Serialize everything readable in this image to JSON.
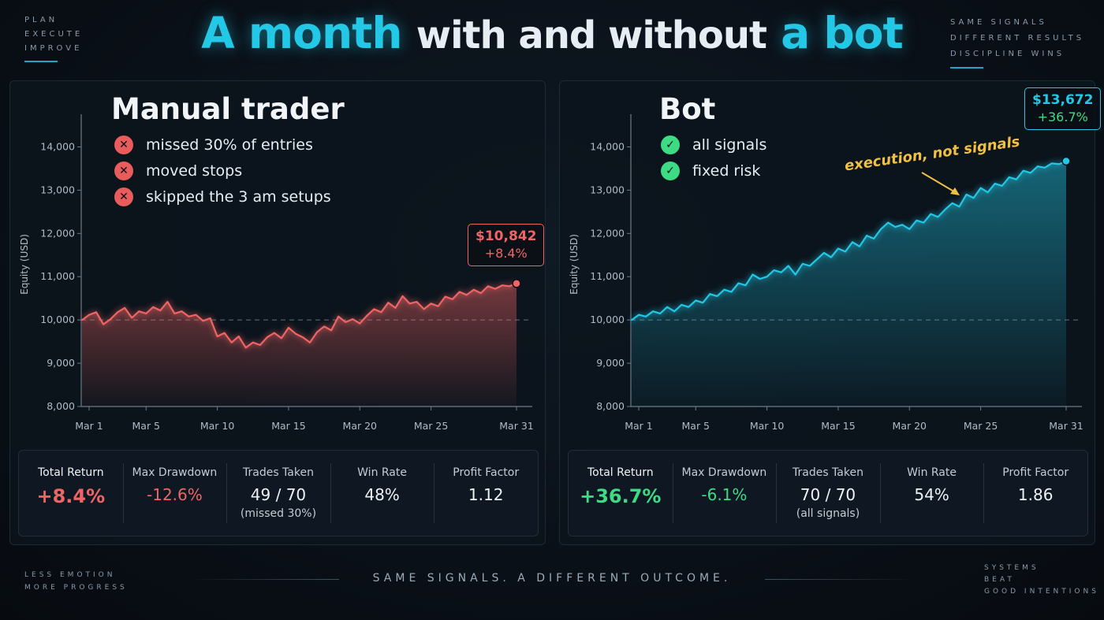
{
  "header": {
    "title_part1": "A month",
    "title_part2": "with and without",
    "title_part3": "a bot"
  },
  "corners": {
    "top_left": [
      "PLAN",
      "EXECUTE",
      "IMPROVE"
    ],
    "top_right": [
      "SAME SIGNALS",
      "DIFFERENT RESULTS",
      "DISCIPLINE WINS"
    ],
    "bottom_left": [
      "LESS EMOTION",
      "MORE PROGRESS"
    ],
    "bottom_right": [
      "SYSTEMS",
      "BEAT",
      "GOOD INTENTIONS"
    ]
  },
  "footer": {
    "tagline": "SAME SIGNALS. A DIFFERENT OUTCOME."
  },
  "colors": {
    "accent": "#22c8e6",
    "negative": "#ef6565",
    "positive": "#3ddc84",
    "annotation": "#f0c040"
  },
  "panels": {
    "left": {
      "title": "Manual trader",
      "bullets": [
        "missed 30% of entries",
        "moved stops",
        "skipped the 3 am setups"
      ],
      "bullet_icon": "x-circle-icon",
      "callout_value": "$10,842",
      "callout_pct": "+8.4%",
      "stats": {
        "total_return_label": "Total Return",
        "total_return": "+8.4%",
        "max_drawdown_label": "Max Drawdown",
        "max_drawdown": "-12.6%",
        "trades_taken_label": "Trades Taken",
        "trades_taken": "49 / 70",
        "trades_note": "(missed 30%)",
        "win_rate_label": "Win Rate",
        "win_rate": "48%",
        "profit_factor_label": "Profit Factor",
        "profit_factor": "1.12"
      }
    },
    "right": {
      "title": "Bot",
      "bullets": [
        "all signals",
        "fixed risk"
      ],
      "bullet_icon": "check-circle-icon",
      "callout_value": "$13,672",
      "callout_pct": "+36.7%",
      "annotation": "execution, not signals",
      "stats": {
        "total_return_label": "Total Return",
        "total_return": "+36.7%",
        "max_drawdown_label": "Max Drawdown",
        "max_drawdown": "-6.1%",
        "trades_taken_label": "Trades Taken",
        "trades_taken": "70 / 70",
        "trades_note": "(all signals)",
        "win_rate_label": "Win Rate",
        "win_rate": "54%",
        "profit_factor_label": "Profit Factor",
        "profit_factor": "1.86"
      }
    }
  },
  "chart_data": [
    {
      "type": "area",
      "ylabel": "Equity (USD)",
      "xlabel": "",
      "ylim": [
        8000,
        14500
      ],
      "xlim": [
        1,
        31
      ],
      "yticks": [
        "8,000",
        "9,000",
        "10,000",
        "11,000",
        "12,000",
        "13,000",
        "14,000"
      ],
      "ytick_values": [
        8000,
        9000,
        10000,
        11000,
        12000,
        13000,
        14000
      ],
      "xticks": [
        "Mar 1",
        "Mar 5",
        "Mar 10",
        "Mar 15",
        "Mar 20",
        "Mar 25",
        "Mar 31"
      ],
      "xtick_values": [
        1,
        5,
        10,
        15,
        20,
        25,
        31
      ],
      "baseline": 10000,
      "grid": false,
      "color": "#ef6565",
      "series": [
        {
          "x": [
            0.5,
            1,
            1.5,
            2,
            2.5,
            3,
            3.5,
            4,
            4.5,
            5,
            5.5,
            6,
            6.5,
            7,
            7.5,
            8,
            8.5,
            9,
            9.5,
            10,
            10.5,
            11,
            11.5,
            12,
            12.5,
            13,
            13.5,
            14,
            14.5,
            15,
            15.5,
            16,
            16.5,
            17,
            17.5,
            18,
            18.5,
            19,
            19.5,
            20,
            20.5,
            21,
            21.5,
            22,
            22.5,
            23,
            23.5,
            24,
            24.5,
            25,
            25.5,
            26,
            26.5,
            27,
            27.5,
            28,
            28.5,
            29,
            29.5,
            30,
            30.5,
            31
          ],
          "y": [
            10000,
            10120,
            10180,
            9900,
            10020,
            10180,
            10280,
            10050,
            10200,
            10150,
            10300,
            10220,
            10420,
            10150,
            10200,
            10080,
            10120,
            9980,
            10040,
            9620,
            9700,
            9480,
            9620,
            9360,
            9480,
            9420,
            9600,
            9700,
            9580,
            9820,
            9680,
            9600,
            9480,
            9720,
            9850,
            9760,
            10080,
            9950,
            10020,
            9920,
            10100,
            10250,
            10180,
            10400,
            10280,
            10550,
            10380,
            10420,
            10250,
            10380,
            10320,
            10540,
            10480,
            10650,
            10580,
            10700,
            10620,
            10780,
            10720,
            10800,
            10780,
            10842
          ]
        }
      ]
    },
    {
      "type": "area",
      "ylabel": "Equity (USD)",
      "xlabel": "",
      "ylim": [
        8000,
        14500
      ],
      "xlim": [
        1,
        31
      ],
      "yticks": [
        "8,000",
        "9,000",
        "10,000",
        "11,000",
        "12,000",
        "13,000",
        "14,000"
      ],
      "ytick_values": [
        8000,
        9000,
        10000,
        11000,
        12000,
        13000,
        14000
      ],
      "xticks": [
        "Mar 1",
        "Mar 5",
        "Mar 10",
        "Mar 15",
        "Mar 20",
        "Mar 25",
        "Mar 31"
      ],
      "xtick_values": [
        1,
        5,
        10,
        15,
        20,
        25,
        31
      ],
      "baseline": 10000,
      "grid": false,
      "color": "#22c8e6",
      "series": [
        {
          "x": [
            0.5,
            1,
            1.5,
            2,
            2.5,
            3,
            3.5,
            4,
            4.5,
            5,
            5.5,
            6,
            6.5,
            7,
            7.5,
            8,
            8.5,
            9,
            9.5,
            10,
            10.5,
            11,
            11.5,
            12,
            12.5,
            13,
            13.5,
            14,
            14.5,
            15,
            15.5,
            16,
            16.5,
            17,
            17.5,
            18,
            18.5,
            19,
            19.5,
            20,
            20.5,
            21,
            21.5,
            22,
            22.5,
            23,
            23.5,
            24,
            24.5,
            25,
            25.5,
            26,
            26.5,
            27,
            27.5,
            28,
            28.5,
            29,
            29.5,
            30,
            30.5,
            31
          ],
          "y": [
            10000,
            10120,
            10080,
            10200,
            10150,
            10300,
            10200,
            10350,
            10300,
            10450,
            10400,
            10600,
            10550,
            10700,
            10650,
            10850,
            10800,
            11050,
            10950,
            11000,
            11150,
            11100,
            11250,
            11050,
            11300,
            11250,
            11400,
            11550,
            11450,
            11650,
            11580,
            11800,
            11700,
            11950,
            11880,
            12100,
            12250,
            12150,
            12200,
            12100,
            12300,
            12250,
            12450,
            12380,
            12550,
            12700,
            12620,
            12900,
            12820,
            13050,
            12950,
            13150,
            13100,
            13300,
            13250,
            13450,
            13400,
            13550,
            13520,
            13620,
            13600,
            13672
          ]
        }
      ]
    }
  ]
}
